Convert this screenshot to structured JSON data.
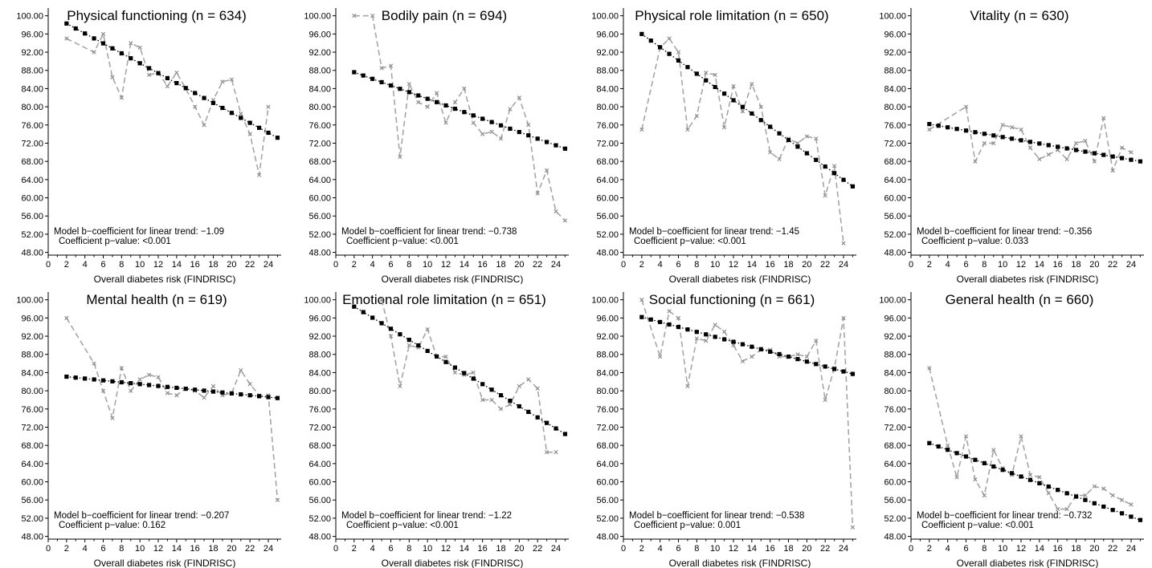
{
  "chart_data": [
    {
      "type": "line",
      "title": "Physical functioning (n = 634)",
      "xlabel": "Overall diabetes risk (FINDRISC)",
      "ylabel": "",
      "xlim": [
        0,
        25
      ],
      "ylim": [
        48,
        100
      ],
      "xticks": [
        0,
        2,
        4,
        6,
        8,
        10,
        12,
        14,
        16,
        18,
        20,
        22,
        24
      ],
      "yticks": [
        "48.00",
        "52.00",
        "56.00",
        "60.00",
        "64.00",
        "68.00",
        "72.00",
        "76.00",
        "80.00",
        "84.00",
        "88.00",
        "92.00",
        "96.00",
        "100.00"
      ],
      "grid": false,
      "annotation": {
        "line1": "Model b−coefficient for linear trend: −1.09",
        "line2": "Coefficient p−value:  <0.001"
      },
      "series": [
        {
          "style": "observed-dashed-gray",
          "x": [
            2,
            5,
            6,
            7,
            8,
            9,
            10,
            11,
            12,
            13,
            14,
            15,
            16,
            17,
            18,
            19,
            20,
            21,
            22,
            23,
            24
          ],
          "values": [
            95,
            92,
            96,
            86.5,
            82,
            94,
            93,
            87,
            87.5,
            84.5,
            87.5,
            84,
            80,
            76,
            81.5,
            85.5,
            86,
            78.5,
            74,
            65,
            80
          ]
        },
        {
          "style": "model-dotted-black",
          "x": [
            2,
            25
          ],
          "values": [
            98.3,
            73.2
          ]
        }
      ]
    },
    {
      "type": "line",
      "title": "Bodily pain (n = 694)",
      "xlabel": "Overall diabetes risk (FINDRISC)",
      "ylabel": "",
      "xlim": [
        0,
        25
      ],
      "ylim": [
        48,
        100
      ],
      "xticks": [
        0,
        2,
        4,
        6,
        8,
        10,
        12,
        14,
        16,
        18,
        20,
        22,
        24
      ],
      "yticks": [
        "48.00",
        "52.00",
        "56.00",
        "60.00",
        "64.00",
        "68.00",
        "72.00",
        "76.00",
        "80.00",
        "84.00",
        "88.00",
        "92.00",
        "96.00",
        "100.00"
      ],
      "grid": false,
      "annotation": {
        "line1": "Model b−coefficient for linear trend: −0.738",
        "line2": "Coefficient p−value:  <0.001"
      },
      "series": [
        {
          "style": "observed-dashed-gray",
          "x": [
            2,
            4,
            5,
            6,
            7,
            8,
            9,
            10,
            11,
            12,
            13,
            14,
            15,
            16,
            17,
            18,
            19,
            20,
            21,
            22,
            23,
            24,
            25
          ],
          "values": [
            100,
            100,
            88.5,
            89,
            69,
            85,
            81,
            80,
            83,
            76.5,
            81,
            84,
            76.5,
            74,
            74.5,
            73,
            79.5,
            82,
            76,
            61,
            66,
            57,
            55
          ]
        },
        {
          "style": "model-dotted-black",
          "x": [
            2,
            25
          ],
          "values": [
            87.6,
            70.8
          ]
        }
      ]
    },
    {
      "type": "line",
      "title": "Physical role limitation (n = 650)",
      "xlabel": "Overall diabetes risk (FINDRISC)",
      "ylabel": "",
      "xlim": [
        0,
        25
      ],
      "ylim": [
        48,
        100
      ],
      "xticks": [
        0,
        2,
        4,
        6,
        8,
        10,
        12,
        14,
        16,
        18,
        20,
        22,
        24
      ],
      "yticks": [
        "48.00",
        "52.00",
        "56.00",
        "60.00",
        "64.00",
        "68.00",
        "72.00",
        "76.00",
        "80.00",
        "84.00",
        "88.00",
        "92.00",
        "96.00",
        "100.00"
      ],
      "grid": false,
      "annotation": {
        "line1": "Model b−coefficient for linear trend: −1.45",
        "line2": "Coefficient p−value:  <0.001"
      },
      "series": [
        {
          "style": "observed-dashed-gray",
          "x": [
            2,
            4,
            5,
            6,
            7,
            8,
            9,
            10,
            11,
            12,
            13,
            14,
            15,
            16,
            17,
            18,
            19,
            20,
            21,
            22,
            23,
            24
          ],
          "values": [
            75,
            93,
            95,
            92,
            75,
            78,
            87.5,
            87,
            75.5,
            84.5,
            79,
            85,
            80,
            70,
            68.5,
            73,
            72,
            73.5,
            73,
            60.5,
            67,
            50
          ]
        },
        {
          "style": "model-dotted-black",
          "x": [
            2,
            25
          ],
          "values": [
            96,
            62.5
          ]
        }
      ]
    },
    {
      "type": "line",
      "title": "Vitality (n = 630)",
      "xlabel": "Overall diabetes risk (FINDRISC)",
      "ylabel": "",
      "xlim": [
        0,
        25
      ],
      "ylim": [
        48,
        100
      ],
      "xticks": [
        0,
        2,
        4,
        6,
        8,
        10,
        12,
        14,
        16,
        18,
        20,
        22,
        24
      ],
      "yticks": [
        "48.00",
        "52.00",
        "56.00",
        "60.00",
        "64.00",
        "68.00",
        "72.00",
        "76.00",
        "80.00",
        "84.00",
        "88.00",
        "92.00",
        "96.00",
        "100.00"
      ],
      "grid": false,
      "annotation": {
        "line1": "Model b−coefficient for linear trend: −0.356",
        "line2": "Coefficient p−value:  0.033"
      },
      "series": [
        {
          "style": "observed-dashed-gray",
          "x": [
            2,
            6,
            7,
            8,
            9,
            10,
            11,
            12,
            13,
            14,
            15,
            16,
            17,
            18,
            19,
            20,
            21,
            22,
            23,
            24
          ],
          "values": [
            75,
            80,
            68,
            72,
            72,
            76,
            75.5,
            75,
            71,
            68.5,
            69.5,
            70.5,
            68.5,
            72,
            72.5,
            68,
            77.5,
            66,
            71,
            70
          ]
        },
        {
          "style": "model-dotted-black",
          "x": [
            2,
            25
          ],
          "values": [
            76.2,
            68
          ]
        }
      ]
    },
    {
      "type": "line",
      "title": "Mental health (n = 619)",
      "xlabel": "Overall diabetes risk (FINDRISC)",
      "ylabel": "",
      "xlim": [
        0,
        25
      ],
      "ylim": [
        48,
        100
      ],
      "xticks": [
        0,
        2,
        4,
        6,
        8,
        10,
        12,
        14,
        16,
        18,
        20,
        22,
        24
      ],
      "yticks": [
        "48.00",
        "52.00",
        "56.00",
        "60.00",
        "64.00",
        "68.00",
        "72.00",
        "76.00",
        "80.00",
        "84.00",
        "88.00",
        "92.00",
        "96.00",
        "100.00"
      ],
      "grid": false,
      "annotation": {
        "line1": "Model b−coefficient for linear trend: −0.207",
        "line2": "Coefficient p−value:  0.162"
      },
      "series": [
        {
          "style": "observed-dashed-gray",
          "x": [
            2,
            5,
            6,
            7,
            8,
            9,
            10,
            11,
            12,
            13,
            14,
            15,
            16,
            17,
            18,
            19,
            20,
            21,
            22,
            23,
            24,
            25
          ],
          "values": [
            96,
            86,
            80,
            74,
            85,
            80,
            82.5,
            83.5,
            83,
            79.5,
            79,
            80.5,
            80,
            78.5,
            81,
            79,
            79.5,
            84.5,
            81.5,
            79,
            79,
            56
          ]
        },
        {
          "style": "model-dotted-black",
          "x": [
            2,
            25
          ],
          "values": [
            83.1,
            78.4
          ]
        }
      ]
    },
    {
      "type": "line",
      "title": "Emotional role limitation (n = 651)",
      "xlabel": "Overall diabetes risk (FINDRISC)",
      "ylabel": "",
      "xlim": [
        0,
        25
      ],
      "ylim": [
        48,
        100
      ],
      "xticks": [
        0,
        2,
        4,
        6,
        8,
        10,
        12,
        14,
        16,
        18,
        20,
        22,
        24
      ],
      "yticks": [
        "48.00",
        "52.00",
        "56.00",
        "60.00",
        "64.00",
        "68.00",
        "72.00",
        "76.00",
        "80.00",
        "84.00",
        "88.00",
        "92.00",
        "96.00",
        "100.00"
      ],
      "grid": false,
      "annotation": {
        "line1": "Model b−coefficient for linear trend: −1.22",
        "line2": "Coefficient p−value:  <0.001"
      },
      "series": [
        {
          "style": "observed-dashed-gray",
          "x": [
            5,
            6,
            7,
            8,
            9,
            10,
            11,
            12,
            13,
            14,
            15,
            16,
            17,
            18,
            19,
            20,
            21,
            22,
            23,
            24
          ],
          "values": [
            100,
            92,
            81,
            90,
            89.5,
            93.5,
            87.5,
            87.5,
            84,
            83.5,
            84,
            78,
            78,
            76,
            77,
            81,
            82.5,
            80.5,
            66.5,
            66.5
          ]
        },
        {
          "style": "model-dotted-black",
          "x": [
            2,
            25
          ],
          "values": [
            98.5,
            70.5
          ]
        }
      ]
    },
    {
      "type": "line",
      "title": "Social functioning (n = 661)",
      "xlabel": "Overall diabetes risk (FINDRISC)",
      "ylabel": "",
      "xlim": [
        0,
        25
      ],
      "ylim": [
        48,
        100
      ],
      "xticks": [
        0,
        2,
        4,
        6,
        8,
        10,
        12,
        14,
        16,
        18,
        20,
        22,
        24
      ],
      "yticks": [
        "48.00",
        "52.00",
        "56.00",
        "60.00",
        "64.00",
        "68.00",
        "72.00",
        "76.00",
        "80.00",
        "84.00",
        "88.00",
        "92.00",
        "96.00",
        "100.00"
      ],
      "grid": false,
      "annotation": {
        "line1": "Model b−coefficient for linear trend: −0.538",
        "line2": "Coefficient p−value:  0.001"
      },
      "series": [
        {
          "style": "observed-dashed-gray",
          "x": [
            2,
            4,
            5,
            6,
            7,
            8,
            9,
            10,
            11,
            12,
            13,
            14,
            15,
            16,
            17,
            18,
            19,
            20,
            21,
            22,
            23,
            24,
            25
          ],
          "values": [
            100,
            87.5,
            97.5,
            96,
            81,
            91.5,
            91,
            94.5,
            93,
            90,
            86.5,
            87.5,
            89,
            89,
            87.5,
            87.5,
            88,
            87.5,
            91,
            78,
            85,
            96,
            50
          ]
        },
        {
          "style": "model-dotted-black",
          "x": [
            2,
            25
          ],
          "values": [
            96.2,
            83.7
          ]
        }
      ]
    },
    {
      "type": "line",
      "title": "General health (n = 660)",
      "xlabel": "Overall diabetes risk (FINDRISC)",
      "ylabel": "",
      "xlim": [
        0,
        25
      ],
      "ylim": [
        48,
        100
      ],
      "xticks": [
        0,
        2,
        4,
        6,
        8,
        10,
        12,
        14,
        16,
        18,
        20,
        22,
        24
      ],
      "yticks": [
        "48.00",
        "52.00",
        "56.00",
        "60.00",
        "64.00",
        "68.00",
        "72.00",
        "76.00",
        "80.00",
        "84.00",
        "88.00",
        "92.00",
        "96.00",
        "100.00"
      ],
      "grid": false,
      "annotation": {
        "line1": "Model b−coefficient for linear trend: −0.732",
        "line2": "Coefficient p−value:  <0.001"
      },
      "series": [
        {
          "style": "observed-dashed-gray",
          "x": [
            2,
            4,
            5,
            6,
            7,
            8,
            9,
            10,
            11,
            12,
            13,
            14,
            15,
            16,
            17,
            18,
            19,
            20,
            21,
            22,
            23,
            24
          ],
          "values": [
            85,
            68,
            61,
            70,
            60.5,
            57,
            67,
            63,
            61.5,
            70,
            61.5,
            61,
            57.5,
            54,
            54,
            57,
            57,
            59,
            58.5,
            57,
            56,
            55
          ]
        },
        {
          "style": "model-dotted-black",
          "x": [
            2,
            25
          ],
          "values": [
            68.5,
            51.6
          ]
        }
      ]
    }
  ]
}
